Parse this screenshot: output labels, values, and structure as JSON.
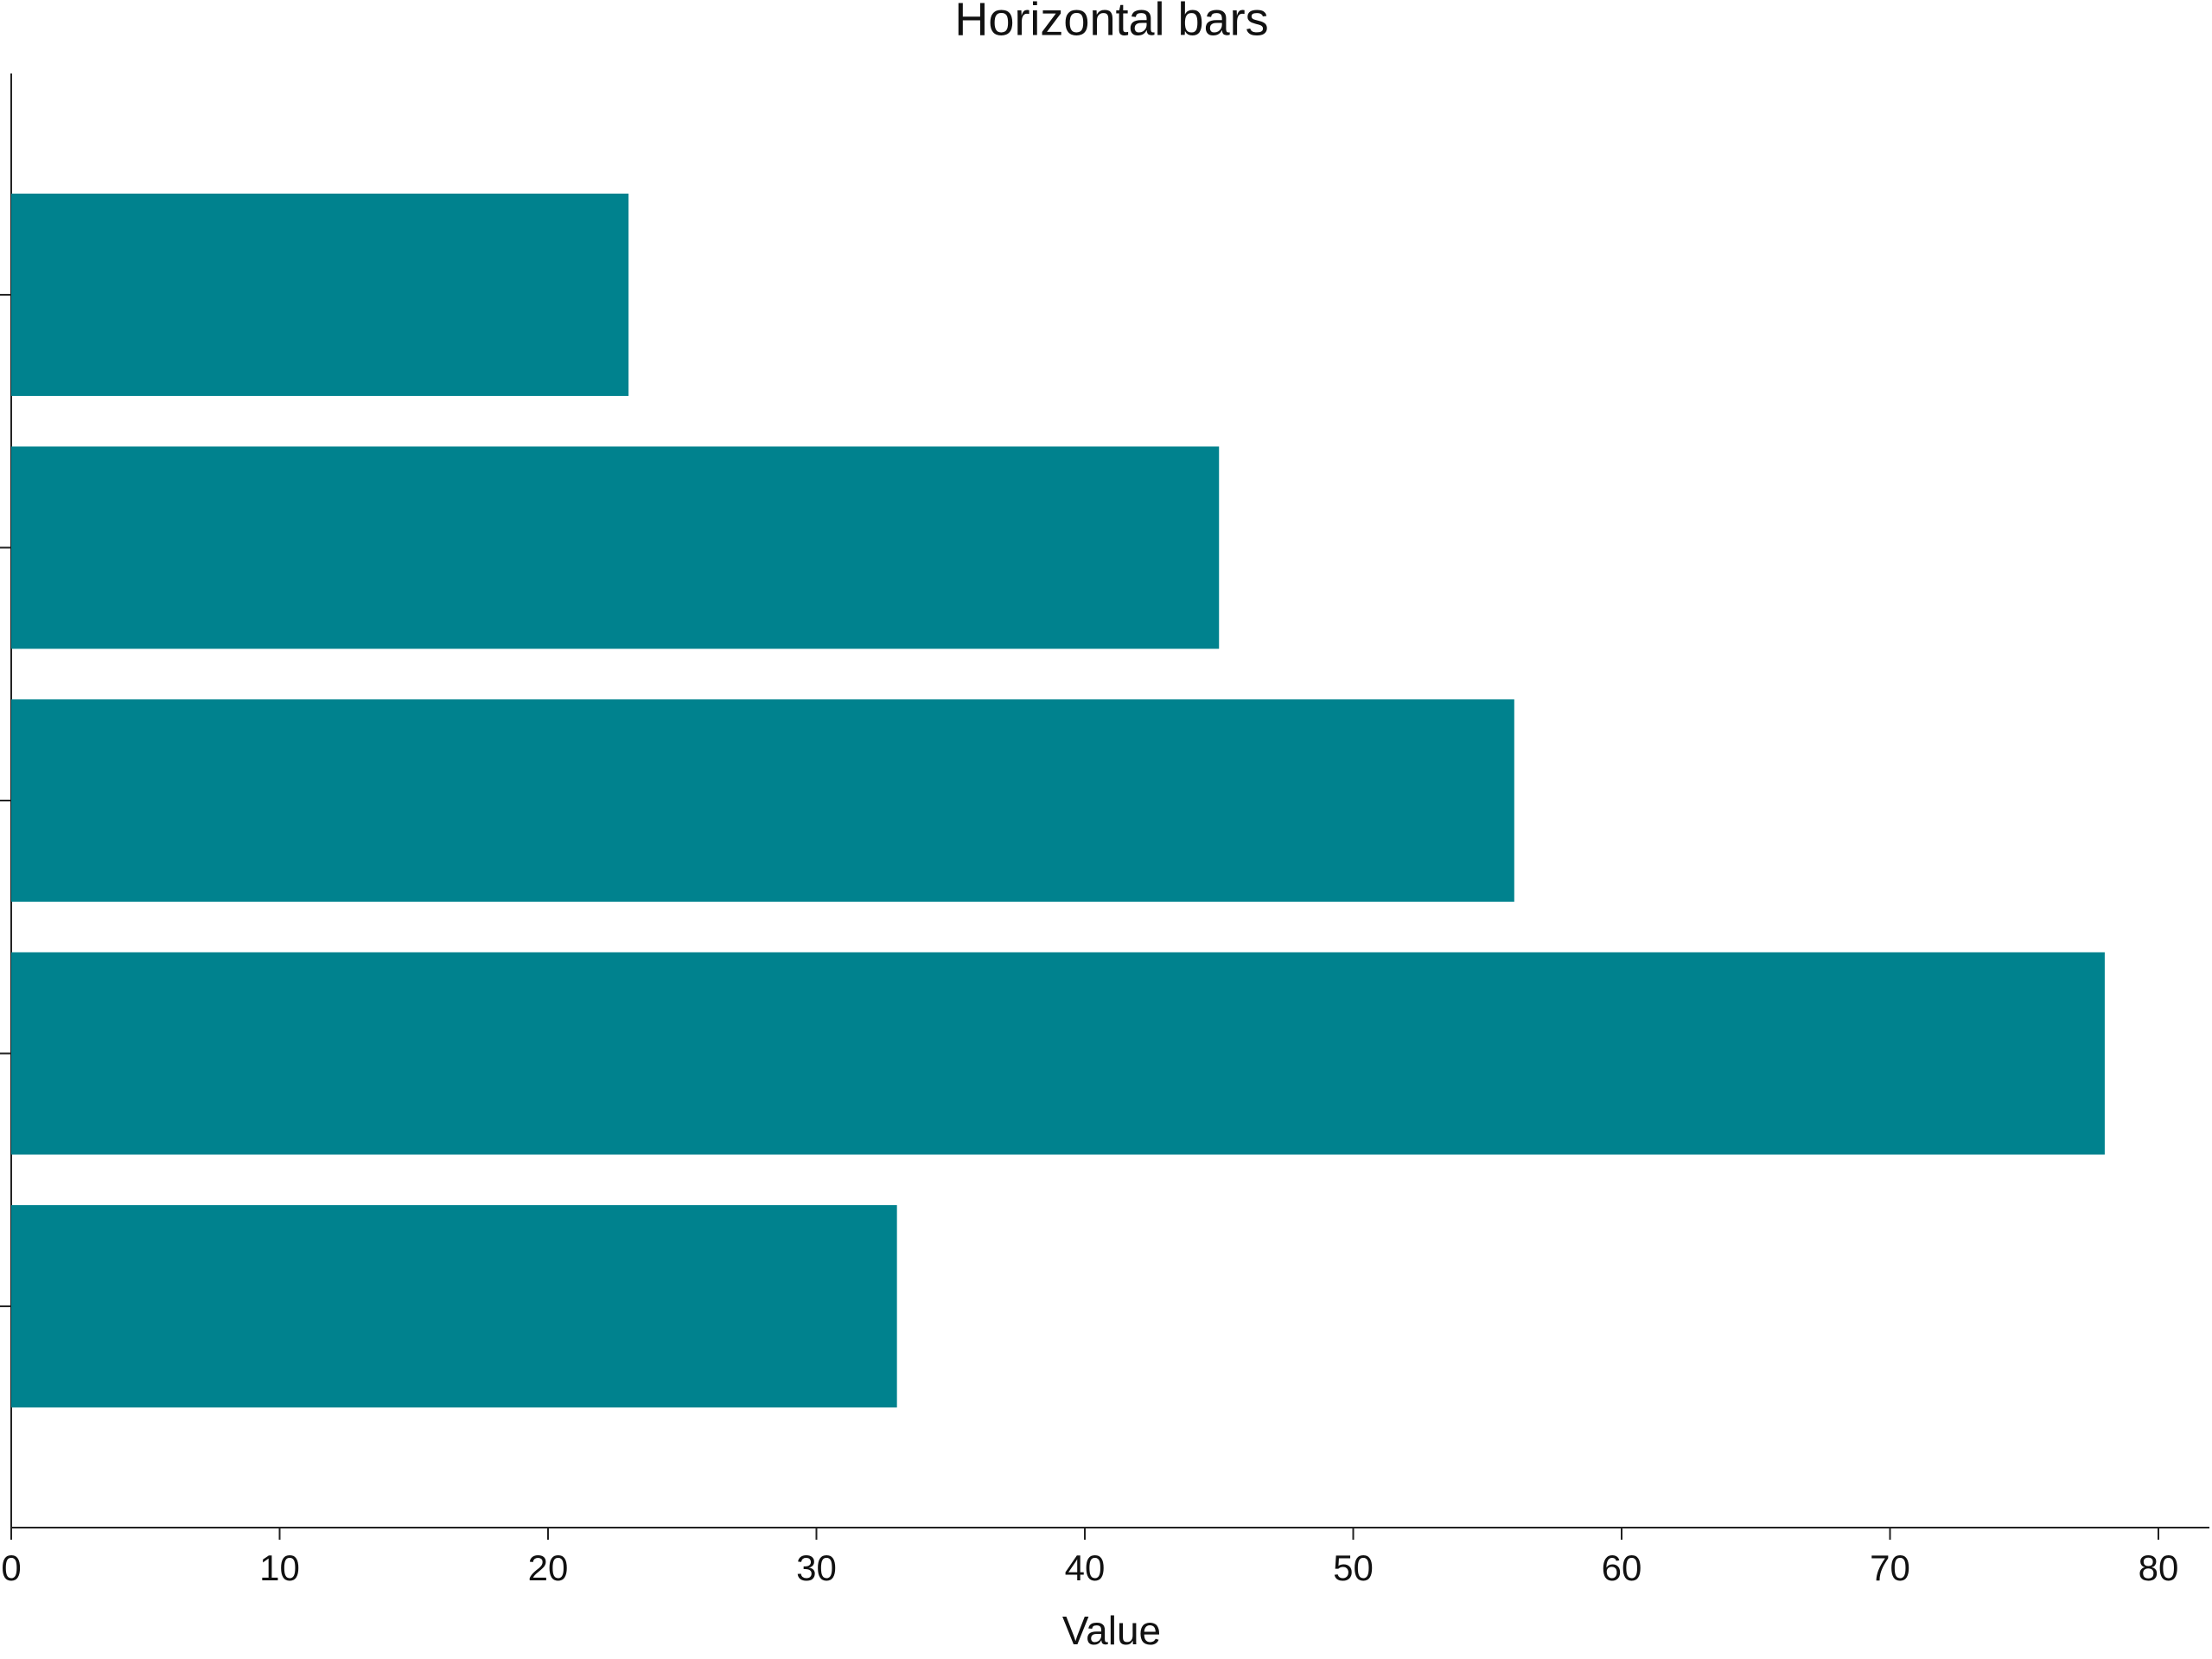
{
  "chart_data": {
    "type": "bar",
    "orientation": "horizontal",
    "title": "Horizontal bars",
    "x_label": "Value",
    "categories": [
      null,
      null,
      null,
      null,
      null
    ],
    "values": [
      23,
      45,
      56,
      78,
      33
    ],
    "color": "#00828e",
    "xlim": [
      0,
      81.9
    ],
    "xticks": [
      0,
      10,
      20,
      30,
      40,
      50,
      60,
      70,
      80
    ],
    "grid": false
  }
}
